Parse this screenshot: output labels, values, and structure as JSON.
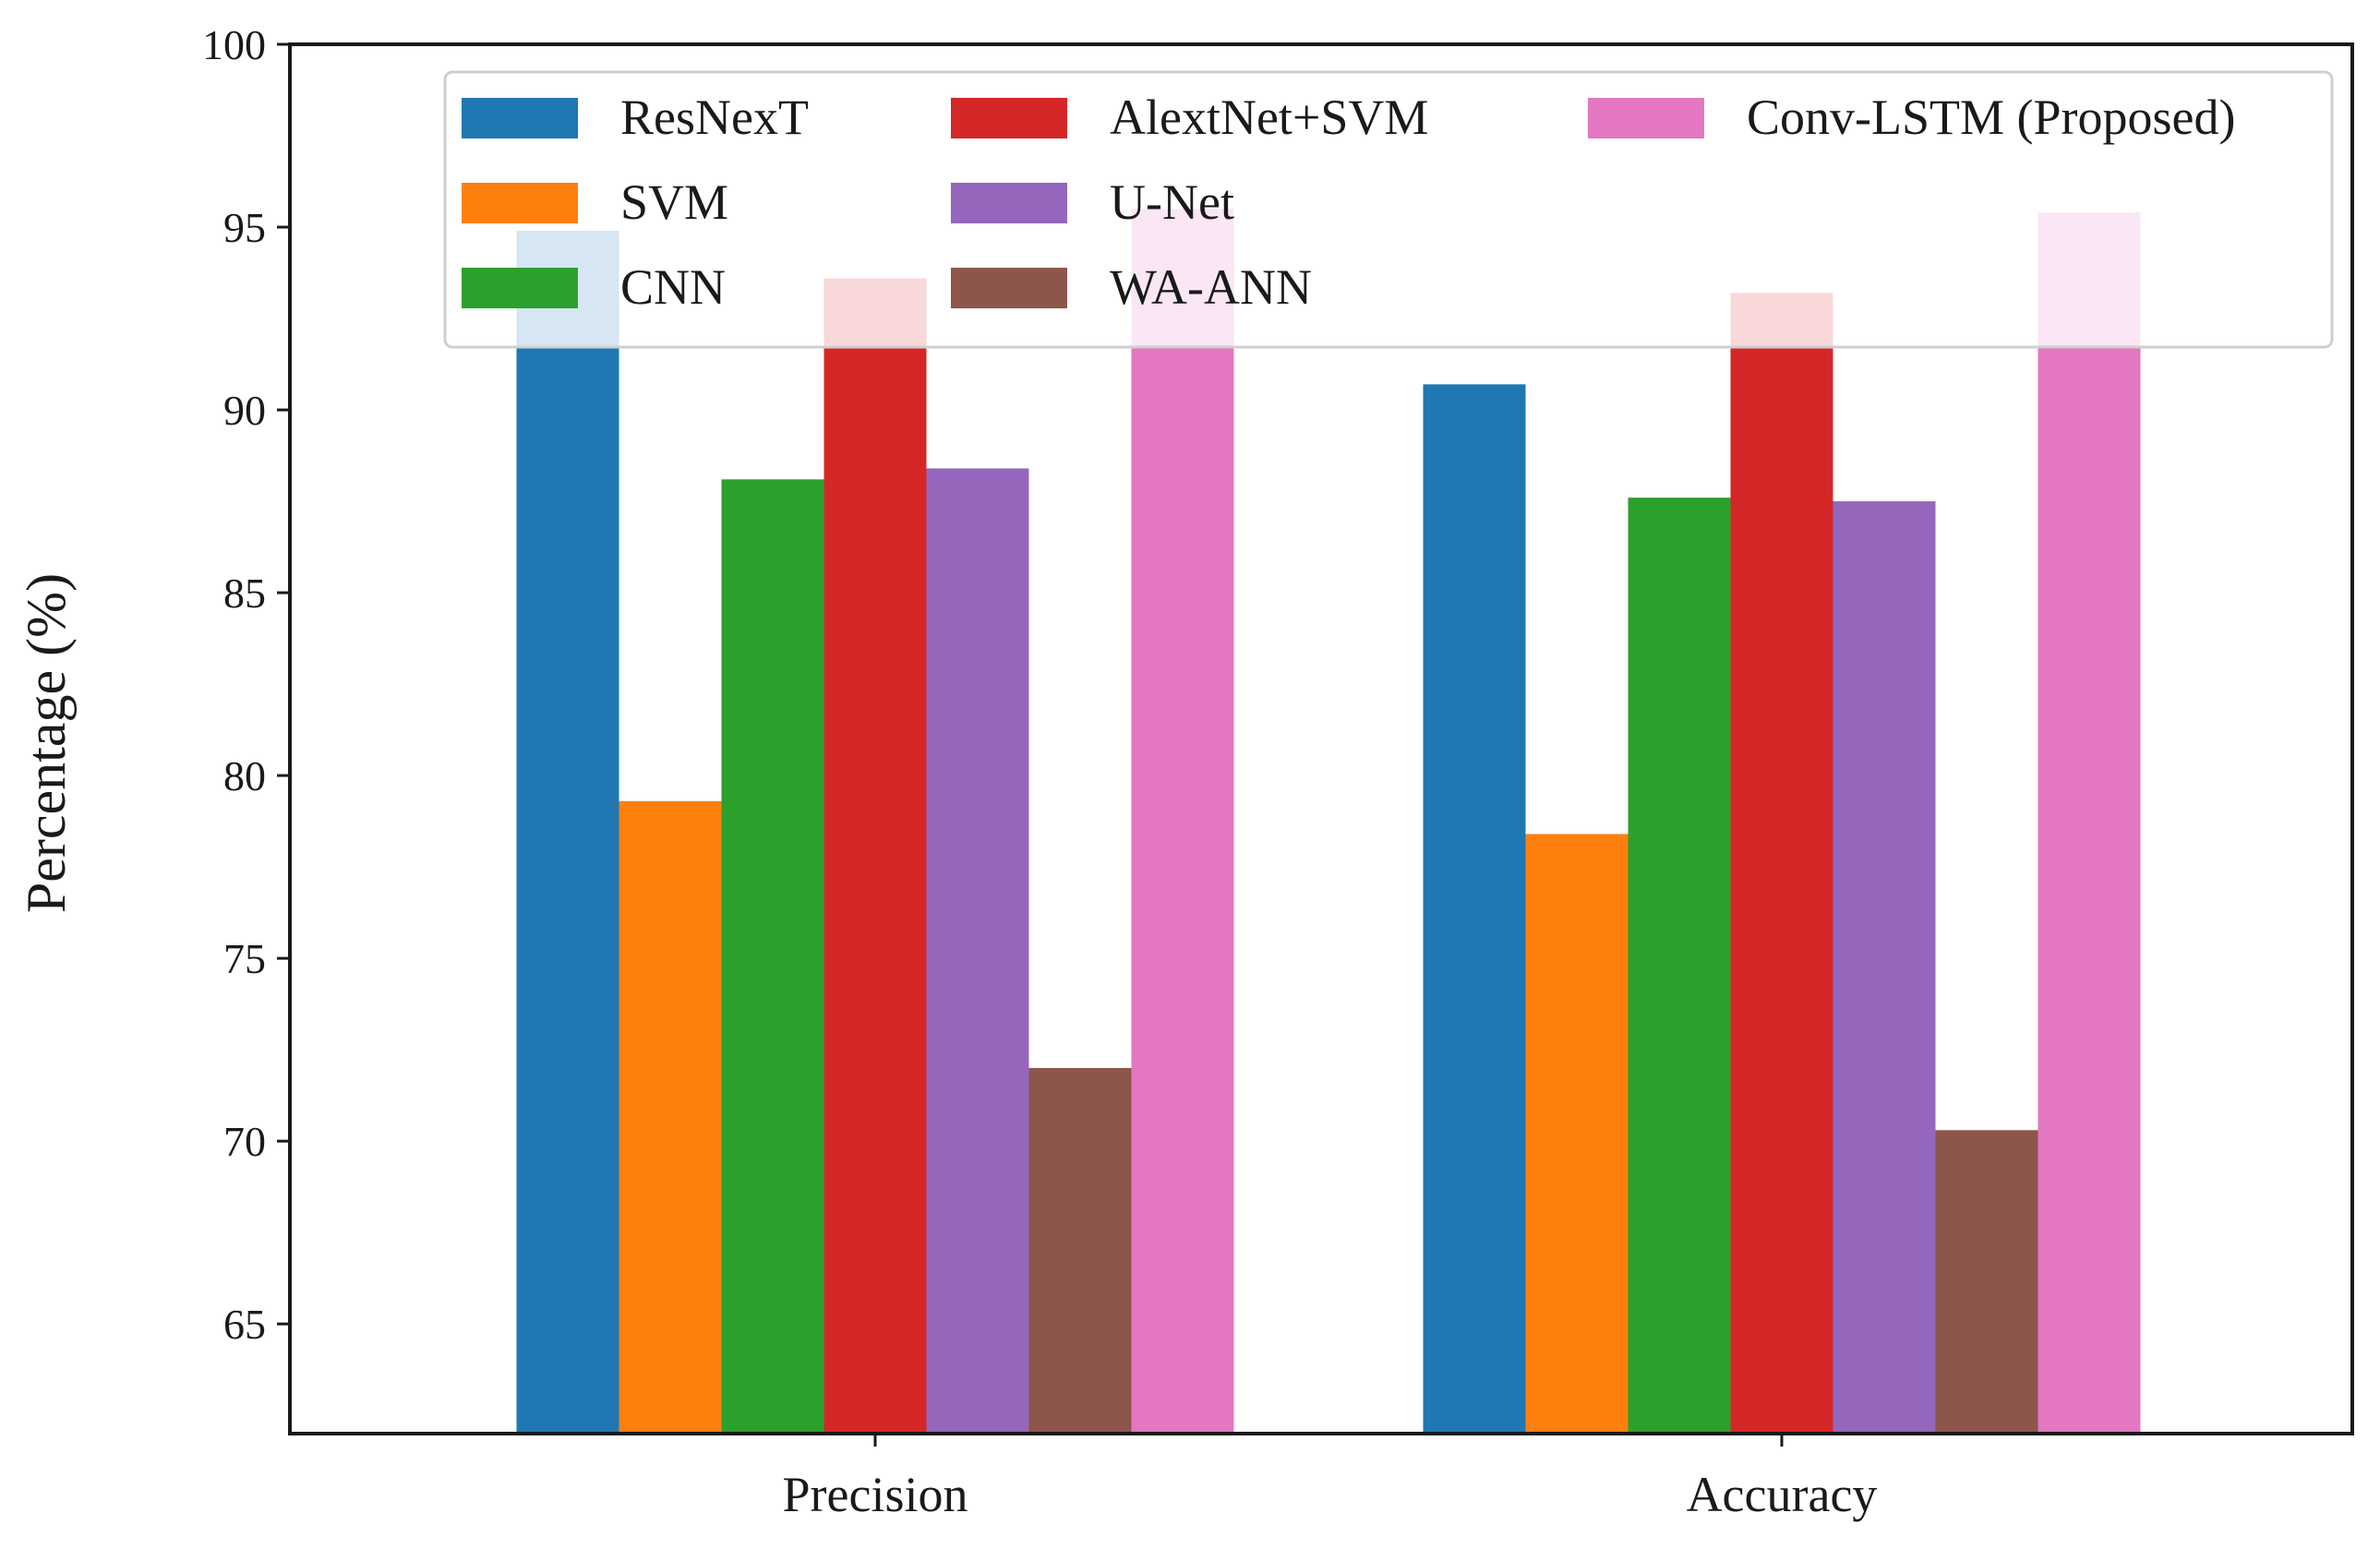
{
  "chart_data": {
    "type": "bar",
    "ylabel": "Percentage (%)",
    "xlabel": "",
    "title": "",
    "ylim": [
      62,
      100
    ],
    "yticks": [
      65,
      70,
      75,
      80,
      85,
      90,
      95,
      100
    ],
    "categories": [
      "Precision",
      "Accuracy"
    ],
    "series": [
      {
        "name": "ResNexT",
        "color": "#1f77b4",
        "values": [
          94.9,
          90.7
        ]
      },
      {
        "name": "SVM",
        "color": "#ff7f0e",
        "values": [
          79.3,
          78.4
        ]
      },
      {
        "name": "CNN",
        "color": "#2ca02c",
        "values": [
          88.1,
          87.6
        ]
      },
      {
        "name": "AlextNet+SVM",
        "color": "#d62728",
        "values": [
          93.6,
          93.2
        ]
      },
      {
        "name": "U-Net",
        "color": "#9467bd",
        "values": [
          88.4,
          87.5
        ]
      },
      {
        "name": "WA-ANN",
        "color": "#8c564b",
        "values": [
          72.0,
          70.3
        ]
      },
      {
        "name": "Conv-LSTM (Proposed)",
        "color": "#e377c2",
        "values": [
          95.5,
          95.4
        ]
      }
    ],
    "legend": {
      "position": "top",
      "columns": 3
    },
    "grid": false
  }
}
